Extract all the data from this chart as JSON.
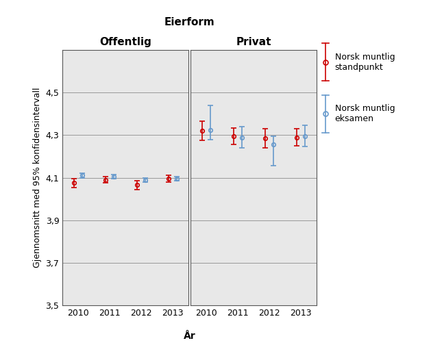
{
  "title": "Eierform",
  "xlabel": "År",
  "ylabel": "Gjennomsnitt med 95% konfidensintervall",
  "years": [
    2010,
    2011,
    2012,
    2013
  ],
  "panels": [
    "Offentlig",
    "Privat"
  ],
  "ylim": [
    3.5,
    4.7
  ],
  "yticks": [
    3.5,
    3.7,
    3.9,
    4.1,
    4.3,
    4.5
  ],
  "offentlig": {
    "standpunkt_mean": [
      4.075,
      4.09,
      4.065,
      4.095
    ],
    "standpunkt_lo": [
      4.055,
      4.075,
      4.045,
      4.08
    ],
    "standpunkt_hi": [
      4.095,
      4.105,
      4.085,
      4.11
    ],
    "eksamen_mean": [
      4.11,
      4.105,
      4.09,
      4.095
    ],
    "eksamen_lo": [
      4.1,
      4.095,
      4.08,
      4.085
    ],
    "eksamen_hi": [
      4.12,
      4.115,
      4.1,
      4.105
    ]
  },
  "privat": {
    "standpunkt_mean": [
      4.32,
      4.295,
      4.285,
      4.29
    ],
    "standpunkt_lo": [
      4.275,
      4.255,
      4.24,
      4.25
    ],
    "standpunkt_hi": [
      4.365,
      4.335,
      4.33,
      4.33
    ],
    "eksamen_mean": [
      4.325,
      4.29,
      4.255,
      4.295
    ],
    "eksamen_lo": [
      4.28,
      4.24,
      4.155,
      4.245
    ],
    "eksamen_hi": [
      4.44,
      4.34,
      4.295,
      4.345
    ]
  },
  "color_standpunkt": "#cc0000",
  "color_eksamen": "#6699cc",
  "marker_size": 4,
  "capsize": 3,
  "background_color": "#e8e8e8",
  "legend_standpunkt": "Norsk muntlig\nstandpunkt",
  "legend_eksamen": "Norsk muntlig\neksamen"
}
